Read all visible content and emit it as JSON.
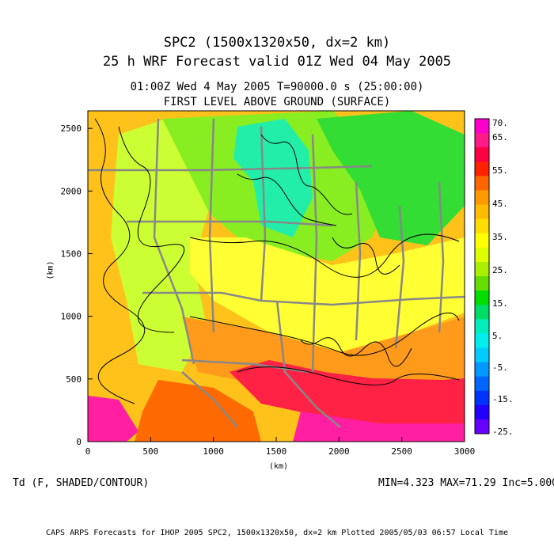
{
  "title": {
    "line1": "SPC2 (1500x1320x50, dx=2 km)",
    "line2": "25 h WRF Forecast valid 01Z Wed 04 May 2005",
    "time_line": "01:00Z Wed  4 May 2005     T=90000.0 s (25:00:00)",
    "level": "FIRST LEVEL ABOVE GROUND (SURFACE)"
  },
  "field_label": "Td (F, SHADED/CONTOUR)",
  "stats": "MIN=4.323 MAX=71.29 Inc=5.000",
  "footer": "CAPS ARPS Forecasts for IHOP 2005  SPC2, 1500x1320x50, dx=2 km  Plotted 2005/05/03 06:57 Local Time",
  "axes": {
    "x_unit": "(km)",
    "y_unit": "(km)",
    "x_ticks": [
      "0",
      "500",
      "1000",
      "1500",
      "2000",
      "2500",
      "3000"
    ],
    "y_ticks": [
      "0",
      "500",
      "1000",
      "1500",
      "2000",
      "2500"
    ],
    "x_range": [
      0,
      3000
    ],
    "y_range": [
      0,
      2640
    ]
  },
  "colorbar": {
    "labels": [
      "70.",
      "65.",
      "55.",
      "45.",
      "35.",
      "25.",
      "15.",
      "5.",
      "-5.",
      "-15.",
      "-25."
    ],
    "colors": [
      "#ff00cc",
      "#ff1a88",
      "#ff0044",
      "#ff2200",
      "#ff6600",
      "#ff9900",
      "#ffbb00",
      "#ffdd00",
      "#ffff00",
      "#ddff00",
      "#aaee00",
      "#66dd00",
      "#00dd00",
      "#00dd66",
      "#00eebb",
      "#00eeee",
      "#00ccff",
      "#0099ff",
      "#0066ff",
      "#0033ff",
      "#2200ff",
      "#6600ff"
    ]
  },
  "map": {
    "colors": {
      "magenta": "#ff1fa0",
      "red": "#ff2244",
      "orange_dark": "#ff6a00",
      "orange": "#ff9a1a",
      "amber": "#ffc21a",
      "yellow": "#ffff33",
      "yellow_green": "#ccff33",
      "lime": "#88ee22",
      "green": "#33dd33",
      "teal": "#22eeaa",
      "border_gray": "#888888"
    }
  }
}
